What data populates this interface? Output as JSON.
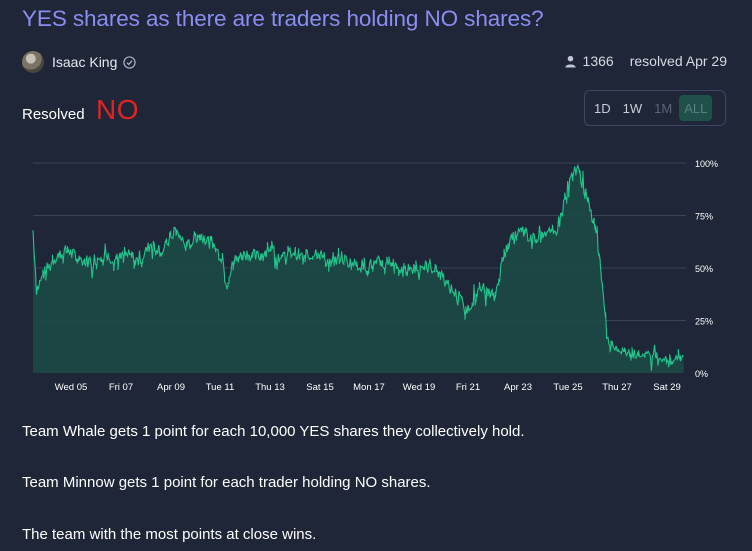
{
  "market": {
    "title": "YES shares as there are traders holding NO shares?",
    "author": "Isaac King",
    "traders_count": "1366",
    "resolved_date_text": "resolved Apr 29",
    "resolved_label": "Resolved",
    "resolved_value": "NO"
  },
  "icons": {
    "avatar": "avatar-image",
    "verified": "verified-check-icon",
    "traders": "person-icon"
  },
  "range_buttons": [
    {
      "label": "1D",
      "state": "normal"
    },
    {
      "label": "1W",
      "state": "normal"
    },
    {
      "label": "1M",
      "state": "disabled"
    },
    {
      "label": "ALL",
      "state": "selected"
    }
  ],
  "colors": {
    "line": "#22c58b",
    "fill": "#1b4a45",
    "resolved_no": "#e02424",
    "title": "#8b8df0"
  },
  "chart_data": {
    "type": "area",
    "x_tick_labels": [
      "Wed 05",
      "Fri 07",
      "Apr 09",
      "Tue 11",
      "Thu 13",
      "Sat 15",
      "Mon 17",
      "Wed 19",
      "Fri 21",
      "Apr 23",
      "Tue 25",
      "Thu 27",
      "Sat 29"
    ],
    "y_tick_labels": [
      "100%",
      "75%",
      "50%",
      "25%",
      "0%"
    ],
    "ylim": [
      0,
      100
    ],
    "grid": true,
    "x_domain_days": [
      0,
      25.4
    ],
    "series": [
      {
        "values_pct": [
          [
            0,
            68
          ],
          [
            0.15,
            40
          ],
          [
            0.5,
            48
          ],
          [
            1,
            56
          ],
          [
            1.5,
            58
          ],
          [
            2,
            54
          ],
          [
            2.5,
            53
          ],
          [
            3,
            57
          ],
          [
            3.5,
            54
          ],
          [
            4,
            56
          ],
          [
            4.5,
            53
          ],
          [
            5,
            62
          ],
          [
            5.5,
            58
          ],
          [
            6,
            68
          ],
          [
            6.5,
            60
          ],
          [
            7,
            66
          ],
          [
            7.5,
            62
          ],
          [
            8,
            55
          ],
          [
            8.2,
            42
          ],
          [
            8.5,
            54
          ],
          [
            9,
            57
          ],
          [
            9.5,
            55
          ],
          [
            10,
            60
          ],
          [
            10.5,
            54
          ],
          [
            11,
            58
          ],
          [
            11.5,
            54
          ],
          [
            12,
            58
          ],
          [
            12.5,
            53
          ],
          [
            13,
            55
          ],
          [
            13.5,
            52
          ],
          [
            14,
            51
          ],
          [
            14.5,
            52
          ],
          [
            15,
            51
          ],
          [
            15.5,
            49
          ],
          [
            16,
            50
          ],
          [
            16.5,
            51
          ],
          [
            17,
            50
          ],
          [
            17.5,
            42
          ],
          [
            18,
            36
          ],
          [
            18.3,
            29
          ],
          [
            18.6,
            35
          ],
          [
            19,
            40
          ],
          [
            19.5,
            36
          ],
          [
            20,
            60
          ],
          [
            20.3,
            64
          ],
          [
            20.7,
            68
          ],
          [
            21,
            63
          ],
          [
            21.5,
            68
          ],
          [
            22,
            65
          ],
          [
            22.3,
            74
          ],
          [
            22.6,
            88
          ],
          [
            22.9,
            98
          ],
          [
            23.2,
            92
          ],
          [
            23.5,
            78
          ],
          [
            23.8,
            70
          ],
          [
            24.1,
            40
          ],
          [
            24.3,
            14
          ],
          [
            24.6,
            12
          ],
          [
            25,
            10
          ],
          [
            25.5,
            8
          ],
          [
            26,
            9
          ],
          [
            26.5,
            7
          ],
          [
            27,
            6
          ],
          [
            27.5,
            8
          ]
        ]
      }
    ]
  },
  "description": [
    "Team Whale gets 1 point for each 10,000 YES shares they collectively hold.",
    "Team Minnow gets 1 point for each trader holding NO shares.",
    "The team with the most points at close wins."
  ]
}
